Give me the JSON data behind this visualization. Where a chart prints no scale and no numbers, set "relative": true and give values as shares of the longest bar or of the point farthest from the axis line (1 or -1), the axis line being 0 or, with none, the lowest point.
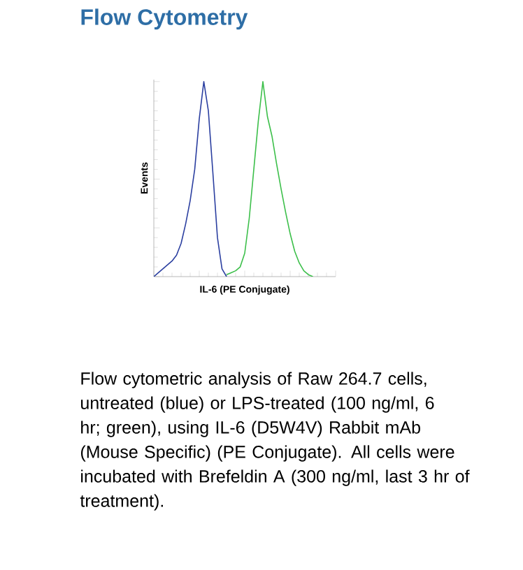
{
  "chart_data": {
    "type": "line",
    "title": "Flow Cytometry",
    "xlabel": "IL-6 (PE Conjugate)",
    "ylabel": "Events",
    "relative": true,
    "tick_labels": false,
    "marker": "none",
    "categories": [
      null,
      null,
      null,
      null,
      null,
      null,
      null,
      null,
      null,
      null,
      null,
      null,
      null,
      null,
      null,
      null,
      null,
      null,
      null,
      null,
      null,
      null,
      null,
      null,
      null,
      null,
      null,
      null,
      null,
      null,
      null,
      null,
      null,
      null,
      null,
      null,
      null,
      null,
      null,
      null
    ],
    "series": [
      {
        "color": "#2b3fa0",
        "values": [
          0,
          0.02,
          0.04,
          0.06,
          0.08,
          0.11,
          0.17,
          0.27,
          0.39,
          0.55,
          0.81,
          1.0,
          0.85,
          0.53,
          0.2,
          0.04,
          0,
          null,
          null,
          null,
          null,
          null,
          null,
          null,
          null,
          null,
          null,
          null,
          null,
          null,
          null,
          null,
          null,
          null,
          null,
          null,
          null,
          null,
          null,
          null
        ]
      },
      {
        "color": "#3cbf4a",
        "values": [
          null,
          null,
          null,
          null,
          null,
          null,
          null,
          null,
          null,
          null,
          null,
          null,
          null,
          null,
          null,
          null,
          0.01,
          0.02,
          0.03,
          0.05,
          0.12,
          0.3,
          0.55,
          0.8,
          1.0,
          0.82,
          0.72,
          0.58,
          0.45,
          0.33,
          0.22,
          0.13,
          0.07,
          0.03,
          0.01,
          0,
          null,
          null,
          null,
          null
        ]
      }
    ],
    "annotations": [
      "Flow cytometric analysis of Raw 264.7 cells, untreated (blue) or LPS-treated (100 ng/ml, 6 hr; green), using IL-6 (D5W4V) Rabbit mAb (Mouse Specific) (PE Conjugate). All cells were incubated with Brefeldin A (300 ng/ml, last 3 hr of treatment)."
    ]
  }
}
